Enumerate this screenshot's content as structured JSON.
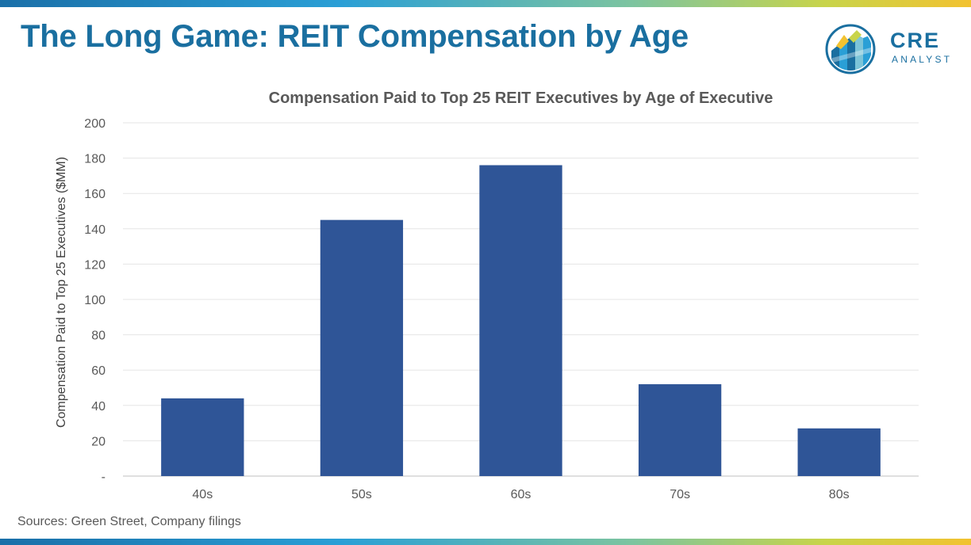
{
  "header": {
    "title": "The Long Game: REIT Compensation by Age",
    "logo": {
      "word1": "CRE",
      "word2": "ANALYST"
    }
  },
  "footer": {
    "source": "Sources: Green Street, Company filings"
  },
  "colors": {
    "title": "#1a6fa0",
    "bar": "#2f5597",
    "grid": "#e5e5e5"
  },
  "chart_data": {
    "type": "bar",
    "title": "Compensation Paid to Top 25 REIT Executives by Age of Executive",
    "xlabel": "",
    "ylabel": "Compensation Paid to Top 25 Executives ($MM)",
    "categories": [
      "40s",
      "50s",
      "60s",
      "70s",
      "80s"
    ],
    "values": [
      44,
      145,
      176,
      52,
      27
    ],
    "ylim": [
      0,
      200
    ],
    "yticks": [
      0,
      20,
      40,
      60,
      80,
      100,
      120,
      140,
      160,
      180,
      200
    ],
    "ytick_labels": [
      "-",
      "20",
      "40",
      "60",
      "80",
      "100",
      "120",
      "140",
      "160",
      "180",
      "200"
    ],
    "grid": true,
    "legend": "none"
  }
}
